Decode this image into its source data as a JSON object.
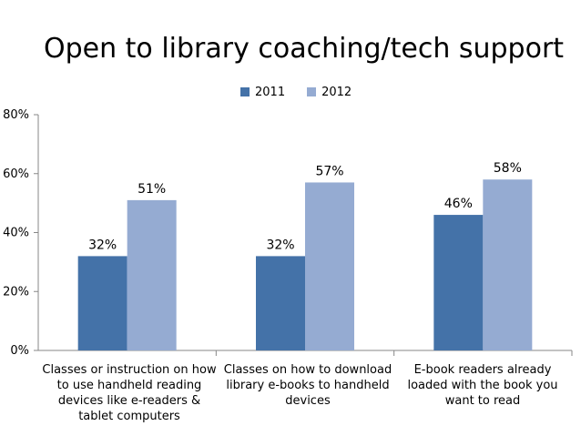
{
  "chart_data": {
    "type": "bar",
    "title": "Open to library coaching/tech support",
    "categories": [
      "Classes or instruction on how to use handheld reading devices like e-readers & tablet computers",
      "Classes on how to download library e-books to handheld devices",
      "E-book readers already loaded with the book you want to read"
    ],
    "series": [
      {
        "name": "2011",
        "values": [
          32,
          32,
          46
        ],
        "labels": [
          "32%",
          "32%",
          "46%"
        ],
        "color": "#4472A8"
      },
      {
        "name": "2012",
        "values": [
          51,
          57,
          58
        ],
        "labels": [
          "51%",
          "57%",
          "58%"
        ],
        "color": "#95ABD2"
      }
    ],
    "ylim": [
      0,
      80
    ],
    "yticks": [
      0,
      20,
      40,
      60,
      80
    ],
    "ytick_labels": [
      "0%",
      "20%",
      "40%",
      "60%",
      "80%"
    ],
    "xlabel": "",
    "ylabel": "",
    "legend_position": "top",
    "grid": false
  }
}
